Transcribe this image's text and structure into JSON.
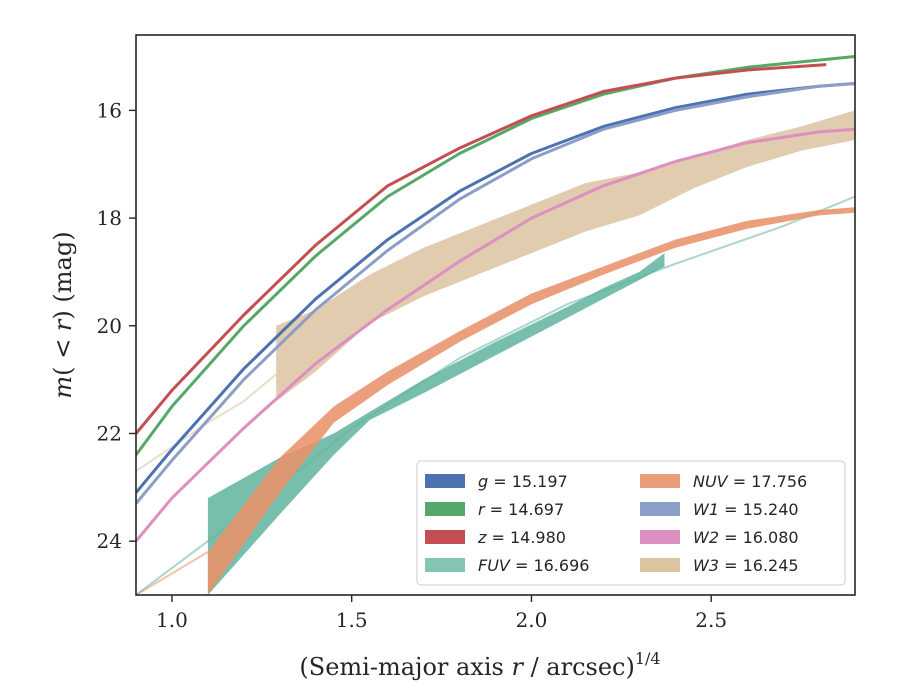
{
  "chart_data": {
    "type": "line",
    "xlabel": "(Semi-major axis r / arcsec)^1/4",
    "xlabel_main": "(Semi-major axis ",
    "xlabel_var": "r",
    "xlabel_rest": " / arcsec)",
    "xlabel_sup": "1/4",
    "ylabel": "m(< r) (mag)",
    "ylabel_var": "m",
    "ylabel_open": "(",
    "ylabel_lt": " < ",
    "ylabel_r": "r",
    "ylabel_close": ") (mag)",
    "xlim": [
      0.9,
      2.9
    ],
    "ylim": [
      25.0,
      14.6
    ],
    "y_inverted": true,
    "xticks": [
      "1.0",
      "1.5",
      "2.0",
      "2.5"
    ],
    "xtick_values": [
      1.0,
      1.5,
      2.0,
      2.5
    ],
    "yticks": [
      "16",
      "18",
      "20",
      "22",
      "24"
    ],
    "ytick_values": [
      16,
      18,
      20,
      22,
      24
    ],
    "grid": false,
    "legend_placement": "lower-right",
    "series": [
      {
        "name": "g",
        "legend_label": "15.197",
        "color": "#4c72b0",
        "kind": "line",
        "x": [
          0.9,
          1.0,
          1.2,
          1.4,
          1.6,
          1.8,
          2.0,
          2.2,
          2.4,
          2.6,
          2.8,
          2.9
        ],
        "y": [
          23.1,
          22.3,
          20.8,
          19.5,
          18.4,
          17.5,
          16.8,
          16.3,
          15.95,
          15.7,
          15.55,
          15.5
        ]
      },
      {
        "name": "r",
        "legend_label": "14.697",
        "color": "#55a868",
        "kind": "line",
        "x": [
          0.9,
          1.0,
          1.2,
          1.4,
          1.6,
          1.8,
          2.0,
          2.2,
          2.4,
          2.6,
          2.75,
          2.9
        ],
        "y": [
          22.4,
          21.5,
          20.0,
          18.7,
          17.6,
          16.8,
          16.15,
          15.7,
          15.4,
          15.2,
          15.1,
          15.0
        ]
      },
      {
        "name": "z",
        "legend_label": "14.980",
        "color": "#c44e52",
        "kind": "line",
        "x": [
          0.9,
          1.0,
          1.2,
          1.4,
          1.6,
          1.8,
          2.0,
          2.2,
          2.4,
          2.6,
          2.82
        ],
        "y": [
          22.0,
          21.2,
          19.8,
          18.5,
          17.4,
          16.7,
          16.1,
          15.65,
          15.4,
          15.25,
          15.15
        ]
      },
      {
        "name": "FUV",
        "legend_label": "16.696",
        "color": "#64b5a0",
        "kind": "band",
        "x": [
          1.1,
          1.3,
          1.45,
          1.55,
          1.7,
          1.9,
          2.1,
          2.2,
          2.3,
          2.37
        ],
        "y_upper": [
          23.2,
          22.45,
          22.0,
          21.6,
          21.0,
          20.3,
          19.65,
          19.3,
          19.0,
          18.65
        ],
        "y_lower": [
          25.0,
          23.5,
          22.4,
          21.75,
          21.25,
          20.55,
          19.85,
          19.5,
          19.15,
          18.9
        ],
        "ext_x": [
          0.9,
          1.2,
          1.5,
          1.8,
          2.1,
          2.4,
          2.7,
          2.9
        ],
        "ext_y": [
          25.0,
          23.5,
          21.9,
          20.6,
          19.6,
          18.85,
          18.15,
          17.6
        ]
      },
      {
        "name": "NUV",
        "legend_label": "17.756",
        "color": "#e8926a",
        "kind": "band",
        "x": [
          1.1,
          1.3,
          1.45,
          1.6,
          1.8,
          2.0,
          2.2,
          2.4,
          2.6,
          2.8,
          2.9
        ],
        "y_upper": [
          24.2,
          22.45,
          21.5,
          20.85,
          20.1,
          19.4,
          18.9,
          18.4,
          18.05,
          17.85,
          17.8
        ],
        "y_lower": [
          25.0,
          23.1,
          21.8,
          21.1,
          20.3,
          19.6,
          19.05,
          18.55,
          18.2,
          17.95,
          17.9
        ],
        "ext_x": [
          0.9,
          1.0,
          1.1
        ],
        "ext_y": [
          25.0,
          24.6,
          24.2
        ]
      },
      {
        "name": "W1",
        "legend_label": "15.240",
        "color": "#8c9ec8",
        "kind": "line",
        "x": [
          0.9,
          1.0,
          1.2,
          1.4,
          1.6,
          1.8,
          2.0,
          2.2,
          2.4,
          2.6,
          2.8,
          2.9
        ],
        "y": [
          23.3,
          22.5,
          21.0,
          19.7,
          18.6,
          17.65,
          16.9,
          16.35,
          16.0,
          15.75,
          15.55,
          15.5
        ]
      },
      {
        "name": "W2",
        "legend_label": "16.080",
        "color": "#dd8fc2",
        "kind": "line",
        "x": [
          0.9,
          1.0,
          1.2,
          1.4,
          1.6,
          1.8,
          2.0,
          2.2,
          2.4,
          2.6,
          2.8,
          2.9
        ],
        "y": [
          24.0,
          23.2,
          21.9,
          20.7,
          19.7,
          18.8,
          18.0,
          17.4,
          16.95,
          16.6,
          16.4,
          16.35
        ]
      },
      {
        "name": "W3",
        "legend_label": "16.245",
        "color": "#dcc3a1",
        "kind": "band",
        "x": [
          1.29,
          1.4,
          1.55,
          1.7,
          1.85,
          2.0,
          2.15,
          2.3,
          2.45,
          2.6,
          2.75,
          2.9
        ],
        "y_upper": [
          20.0,
          19.7,
          19.05,
          18.55,
          18.15,
          17.75,
          17.35,
          17.15,
          16.85,
          16.55,
          16.3,
          16.0
        ],
        "y_lower": [
          21.4,
          20.85,
          19.95,
          19.45,
          19.05,
          18.65,
          18.25,
          17.95,
          17.45,
          17.05,
          16.75,
          16.55
        ],
        "ext_x": [
          0.9,
          1.0,
          1.1,
          1.2,
          1.29
        ],
        "ext_y": [
          22.7,
          22.25,
          21.8,
          21.4,
          20.9
        ]
      }
    ]
  }
}
